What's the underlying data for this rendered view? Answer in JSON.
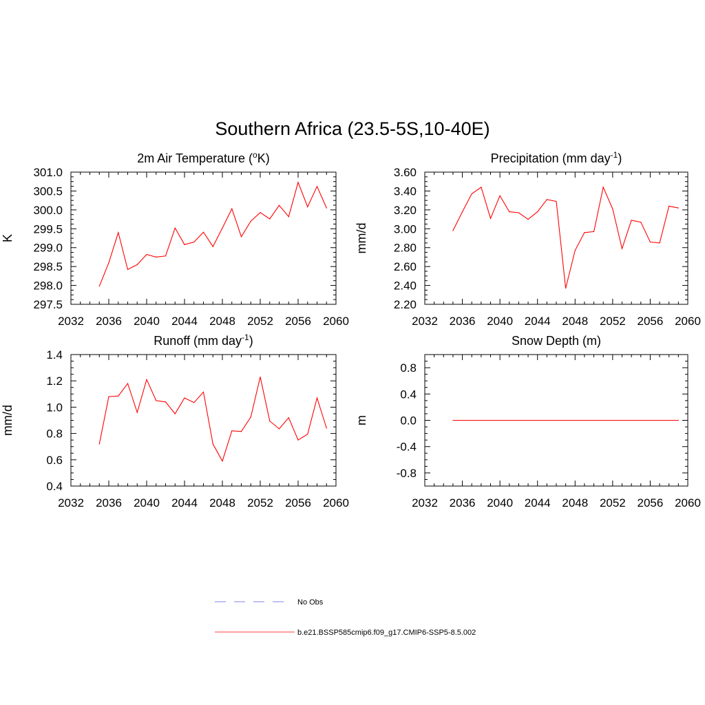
{
  "figure": {
    "title": "Southern Africa (23.5-5S,10-40E)"
  },
  "legend": {
    "entries": [
      {
        "label": "No Obs",
        "color": "#9999ee",
        "style": "dashed"
      },
      {
        "label": "b.e21.BSSP585cmip6.f09_g17.CMIP6-SSP5-8.5.002",
        "color": "#ff3333",
        "style": "solid"
      }
    ]
  },
  "chart_data": [
    {
      "type": "line",
      "title": "2m Air Temperature (",
      "title_sup": "o",
      "title_suffix": "K)",
      "ylabel": "K",
      "xlim": [
        2032,
        2060
      ],
      "ylim": [
        297.5,
        301.0
      ],
      "xticks": [
        2032,
        2036,
        2040,
        2044,
        2048,
        2052,
        2056,
        2060
      ],
      "yticks": [
        "297.5",
        "298.0",
        "298.5",
        "299.0",
        "299.5",
        "300.0",
        "300.5",
        "301.0"
      ],
      "series": [
        {
          "color": "#ff0000",
          "x": [
            2035,
            2036,
            2037,
            2038,
            2039,
            2040,
            2041,
            2042,
            2043,
            2044,
            2045,
            2046,
            2047,
            2048,
            2049,
            2050,
            2051,
            2052,
            2053,
            2054,
            2055,
            2056,
            2057,
            2058,
            2059
          ],
          "y": [
            297.98,
            298.6,
            299.4,
            298.42,
            298.55,
            298.82,
            298.75,
            298.78,
            299.52,
            299.08,
            299.15,
            299.41,
            299.03,
            299.52,
            300.03,
            299.29,
            299.7,
            299.93,
            299.76,
            300.12,
            299.82,
            300.73,
            300.08,
            300.62,
            300.05
          ]
        }
      ]
    },
    {
      "type": "line",
      "title": "Precipitation (mm day",
      "title_sup": "-1",
      "title_suffix": ")",
      "ylabel": "mm/d",
      "xlim": [
        2032,
        2060
      ],
      "ylim": [
        2.2,
        3.6
      ],
      "xticks": [
        2032,
        2036,
        2040,
        2044,
        2048,
        2052,
        2056,
        2060
      ],
      "yticks": [
        "2.20",
        "2.40",
        "2.60",
        "2.80",
        "3.00",
        "3.20",
        "3.40",
        "3.60"
      ],
      "series": [
        {
          "color": "#ff0000",
          "x": [
            2035,
            2036,
            2037,
            2038,
            2039,
            2040,
            2041,
            2042,
            2043,
            2044,
            2045,
            2046,
            2047,
            2048,
            2049,
            2050,
            2051,
            2052,
            2053,
            2054,
            2055,
            2056,
            2057,
            2058,
            2059
          ],
          "y": [
            2.98,
            3.18,
            3.37,
            3.44,
            3.11,
            3.35,
            3.18,
            3.17,
            3.1,
            3.18,
            3.31,
            3.29,
            2.37,
            2.77,
            2.96,
            2.97,
            3.44,
            3.21,
            2.79,
            3.09,
            3.07,
            2.86,
            2.85,
            3.24,
            3.22
          ]
        }
      ]
    },
    {
      "type": "line",
      "title": "Runoff (mm day",
      "title_sup": "-1",
      "title_suffix": ")",
      "ylabel": "mm/d",
      "xlim": [
        2032,
        2060
      ],
      "ylim": [
        0.4,
        1.4
      ],
      "xticks": [
        2032,
        2036,
        2040,
        2044,
        2048,
        2052,
        2056,
        2060
      ],
      "yticks": [
        "0.4",
        "0.6",
        "0.8",
        "1.0",
        "1.2",
        "1.4"
      ],
      "series": [
        {
          "color": "#ff0000",
          "x": [
            2035,
            2036,
            2037,
            2038,
            2039,
            2040,
            2041,
            2042,
            2043,
            2044,
            2045,
            2046,
            2047,
            2048,
            2049,
            2050,
            2051,
            2052,
            2053,
            2054,
            2055,
            2056,
            2057,
            2058,
            2059
          ],
          "y": [
            0.72,
            1.08,
            1.085,
            1.18,
            0.96,
            1.21,
            1.05,
            1.04,
            0.95,
            1.07,
            1.035,
            1.115,
            0.72,
            0.59,
            0.82,
            0.815,
            0.925,
            1.23,
            0.895,
            0.835,
            0.92,
            0.75,
            0.795,
            1.07,
            0.84
          ]
        }
      ]
    },
    {
      "type": "line",
      "title": "Snow Depth (m)",
      "title_sup": "",
      "title_suffix": "",
      "ylabel": "m",
      "xlim": [
        2032,
        2060
      ],
      "ylim": [
        -1.0,
        1.0
      ],
      "xticks": [
        2032,
        2036,
        2040,
        2044,
        2048,
        2052,
        2056,
        2060
      ],
      "yticks": [
        "-0.8",
        "-0.4",
        "0.0",
        "0.4",
        "0.8"
      ],
      "series": [
        {
          "color": "#ff0000",
          "x": [
            2035,
            2036,
            2037,
            2038,
            2039,
            2040,
            2041,
            2042,
            2043,
            2044,
            2045,
            2046,
            2047,
            2048,
            2049,
            2050,
            2051,
            2052,
            2053,
            2054,
            2055,
            2056,
            2057,
            2058,
            2059
          ],
          "y": [
            0,
            0,
            0,
            0,
            0,
            0,
            0,
            0,
            0,
            0,
            0,
            0,
            0,
            0,
            0,
            0,
            0,
            0,
            0,
            0,
            0,
            0,
            0,
            0,
            0
          ]
        }
      ]
    }
  ]
}
